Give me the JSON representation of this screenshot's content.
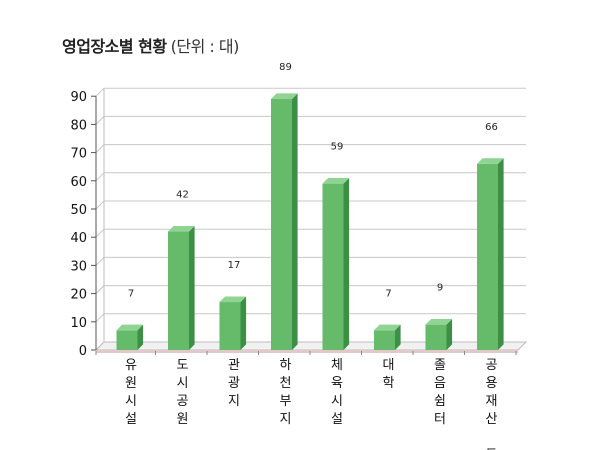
{
  "title": "영업장소별 현황",
  "unit": "(단위 : 대)",
  "chart_data": {
    "type": "bar",
    "title": "영업장소별 현황",
    "unit": "(단위 : 대)",
    "categories": [
      "유원시설",
      "도시공원",
      "관광지",
      "하천부지",
      "체육시설",
      "대학",
      "졸음쉼터",
      "공용재산 등"
    ],
    "category_lines": [
      [
        "유",
        "원",
        "시",
        "설"
      ],
      [
        "도",
        "시",
        "공",
        "원"
      ],
      [
        "관",
        "광",
        "지"
      ],
      [
        "하",
        "천",
        "부",
        "지"
      ],
      [
        "체",
        "육",
        "시",
        "설"
      ],
      [
        "대",
        "학"
      ],
      [
        "졸",
        "음",
        "쉼",
        "터"
      ],
      [
        "공",
        "용",
        "재",
        "산",
        "",
        "등"
      ]
    ],
    "values": [
      7,
      42,
      17,
      89,
      59,
      7,
      9,
      66
    ],
    "data_labels": [
      "7",
      "42",
      "17",
      "89",
      "59",
      "7",
      "9",
      "66"
    ],
    "yticks": [
      0,
      10,
      20,
      30,
      40,
      50,
      60,
      70,
      80,
      90
    ],
    "ylim": [
      0,
      90
    ],
    "grid": true,
    "legend": "none",
    "bar_color": "#66bb6a",
    "bar_side_color": "#3d8f45",
    "bar_top_color": "#8fd493"
  }
}
